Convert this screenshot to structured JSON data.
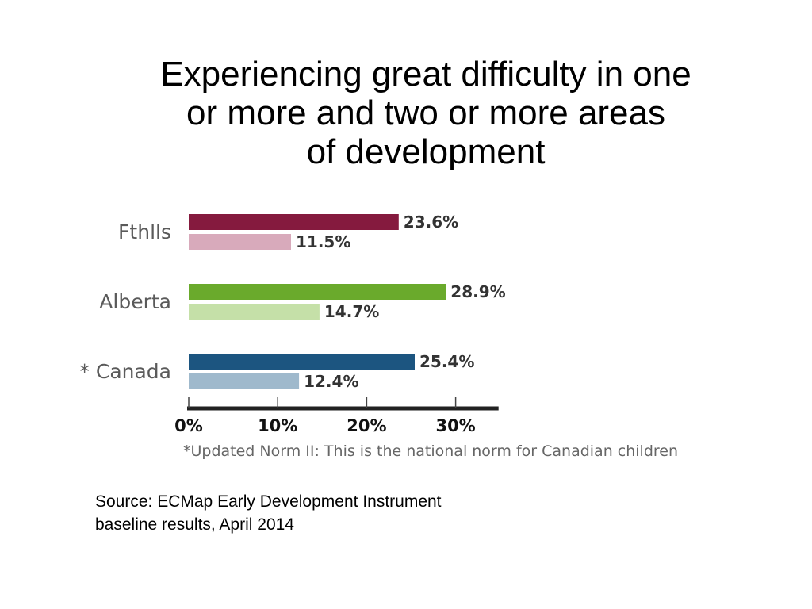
{
  "title": {
    "lines": [
      "Experiencing great difficulty in one",
      "or more and two or more areas",
      "of development"
    ]
  },
  "chart_data": {
    "type": "bar",
    "orientation": "horizontal",
    "categories": [
      "Fthlls",
      "Alberta",
      "* Canada"
    ],
    "series": [
      {
        "values": [
          23.6,
          28.9,
          25.4
        ],
        "value_labels": [
          "23.6%",
          "28.9%",
          "25.4%"
        ]
      },
      {
        "values": [
          11.5,
          14.7,
          12.4
        ],
        "value_labels": [
          "11.5%",
          "14.7%",
          "12.4%"
        ]
      }
    ],
    "bar_colors": [
      [
        "#851a3e",
        "#d8aabb"
      ],
      [
        "#6aaa2c",
        "#c5e0a8"
      ],
      [
        "#1c5580",
        "#9fb9cc"
      ]
    ],
    "x_ticks": [
      0,
      10,
      20,
      30
    ],
    "x_tick_labels": [
      "0%",
      "10%",
      "20%",
      "30%"
    ],
    "xlim": [
      0,
      35
    ],
    "grid": false,
    "legend": "none"
  },
  "footnote": "*Updated Norm II: This is the national norm for Canadian children",
  "source": {
    "lines": [
      "Source: ECMap Early Development Instrument",
      "baseline results, April 2014"
    ]
  }
}
